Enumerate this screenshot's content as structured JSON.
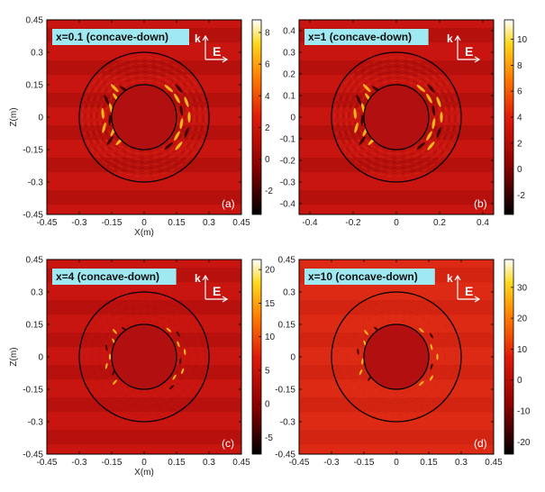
{
  "colors": {
    "field_base": "#c8150f",
    "stripe_dark": "#a50c0a",
    "stripe_light": "#dc2a12",
    "inner_disk": "#b21010",
    "hotspot": "#ffd21e",
    "coldspot": "#2a0000",
    "tag_bg": "#9fe9f2",
    "frame": "#000000"
  },
  "chart_data": [
    {
      "type": "heatmap",
      "title": "x=0.1 (concave-down)",
      "panel_label": "(a)",
      "xlabel": "X(m)",
      "ylabel": "Z(m)",
      "xlim": [
        -0.45,
        0.45
      ],
      "ylim": [
        -0.45,
        0.45
      ],
      "xticks": [
        "-0.45",
        "-0.3",
        "-0.15",
        "0",
        "0.15",
        "0.3",
        "0.45"
      ],
      "xtick_values": [
        -0.45,
        -0.3,
        -0.15,
        0,
        0.15,
        0.3,
        0.45
      ],
      "yticks": [
        "0.45",
        "0.3",
        "0.15",
        "0",
        "-0.15",
        "-0.3",
        "-0.45"
      ],
      "ytick_values": [
        0.45,
        0.3,
        0.15,
        0,
        -0.15,
        -0.3,
        -0.45
      ],
      "colorbar_ticks": [
        "8",
        "6",
        "4",
        "2",
        "0",
        "-2"
      ],
      "colorbar_values": [
        8,
        6,
        4,
        2,
        0,
        -2
      ],
      "colorbar_range": [
        -3.5,
        8.8
      ],
      "wave_labels": [
        "k",
        "E"
      ],
      "inner_radius": 0.15,
      "outer_radius": 0.3
    },
    {
      "type": "heatmap",
      "title": "x=1 (concave-down)",
      "panel_label": "(b)",
      "xlabel": "",
      "ylabel": "",
      "xlim": [
        -0.45,
        0.45
      ],
      "ylim": [
        -0.45,
        0.45
      ],
      "xticks": [
        "-0.4",
        "-0.2",
        "0",
        "0.2",
        "0.4"
      ],
      "xtick_values": [
        -0.4,
        -0.2,
        0,
        0.2,
        0.4
      ],
      "yticks": [
        "0.4",
        "0.3",
        "0.2",
        "0.1",
        "0",
        "-0.1",
        "-0.2",
        "-0.3",
        "-0.4"
      ],
      "ytick_values": [
        0.4,
        0.3,
        0.2,
        0.1,
        0,
        -0.1,
        -0.2,
        -0.3,
        -0.4
      ],
      "colorbar_ticks": [
        "10",
        "8",
        "6",
        "4",
        "2",
        "0",
        "-2"
      ],
      "colorbar_values": [
        10,
        8,
        6,
        4,
        2,
        0,
        -2
      ],
      "colorbar_range": [
        -3.5,
        11.5
      ],
      "wave_labels": [
        "k",
        "E"
      ],
      "inner_radius": 0.15,
      "outer_radius": 0.3
    },
    {
      "type": "heatmap",
      "title": "x=4 (concave-down)",
      "panel_label": "(c)",
      "xlabel": "X(m)",
      "ylabel": "Z(m)",
      "xlim": [
        -0.45,
        0.45
      ],
      "ylim": [
        -0.45,
        0.45
      ],
      "xticks": [
        "-0.45",
        "-0.3",
        "-0.15",
        "0",
        "0.15",
        "0.3",
        "0.45"
      ],
      "xtick_values": [
        -0.45,
        -0.3,
        -0.15,
        0,
        0.15,
        0.3,
        0.45
      ],
      "yticks": [
        "0.45",
        "0.3",
        "0.15",
        "0",
        "-0.15",
        "-0.3",
        "-0.45"
      ],
      "ytick_values": [
        0.45,
        0.3,
        0.15,
        0,
        -0.15,
        -0.3,
        -0.45
      ],
      "colorbar_ticks": [
        "20",
        "15",
        "10",
        "5",
        "0",
        "-5"
      ],
      "colorbar_values": [
        20,
        15,
        10,
        5,
        0,
        -5
      ],
      "colorbar_range": [
        -7.5,
        21.5
      ],
      "wave_labels": [
        "k",
        "E"
      ],
      "inner_radius": 0.15,
      "outer_radius": 0.3
    },
    {
      "type": "heatmap",
      "title": "x=10 (concave-down)",
      "panel_label": "(d)",
      "xlabel": "",
      "ylabel": "",
      "xlim": [
        -0.45,
        0.45
      ],
      "ylim": [
        -0.45,
        0.45
      ],
      "xticks": [
        "-0.45",
        "-0.3",
        "-0.15",
        "0",
        "0.15",
        "0.3",
        "0.45"
      ],
      "xtick_values": [
        -0.45,
        -0.3,
        -0.15,
        0,
        0.15,
        0.3,
        0.45
      ],
      "yticks": [
        "0.45",
        "0.3",
        "0.15",
        "0",
        "-0.15",
        "-0.3",
        "-0.45"
      ],
      "ytick_values": [
        0.45,
        0.3,
        0.15,
        0,
        -0.15,
        -0.3,
        -0.45
      ],
      "colorbar_ticks": [
        "30",
        "20",
        "10",
        "0",
        "-10",
        "-20"
      ],
      "colorbar_values": [
        30,
        20,
        10,
        0,
        -10,
        -20
      ],
      "colorbar_range": [
        -24,
        39
      ],
      "wave_labels": [
        "k",
        "E"
      ],
      "inner_radius": 0.15,
      "outer_radius": 0.3
    }
  ]
}
